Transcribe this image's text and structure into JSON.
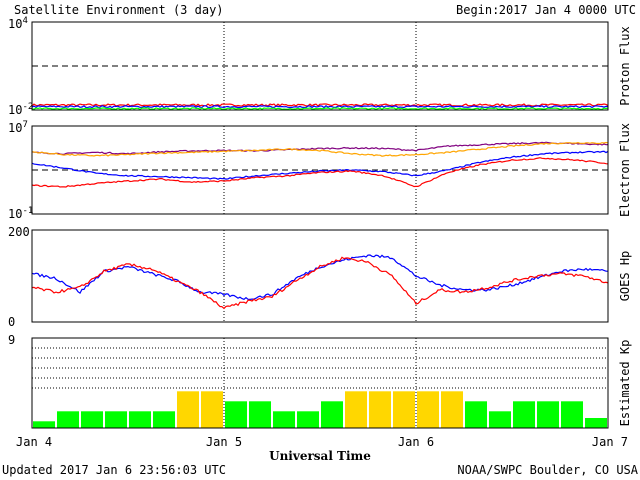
{
  "header": {
    "title": "Satellite Environment (3 day)",
    "begin_label": "Begin:",
    "begin_value": "2017 Jan 4 0000 UTC"
  },
  "footer": {
    "updated": "Updated 2017 Jan  6 23:56:03 UTC",
    "credit": "NOAA/SWPC Boulder, CO USA"
  },
  "chart_data": [
    {
      "type": "line",
      "ylabel": "Proton Flux",
      "y_scale": "log",
      "ylim": [
        0.01,
        10000
      ],
      "ytick_labels": [
        {
          "base": "10",
          "exp": "4",
          "value": 10000
        },
        {
          "base": "10",
          "exp": "-2",
          "value": 0.01
        }
      ],
      "threshold": 10,
      "series": [
        {
          "color": "#ff0000",
          "x": [
            0,
            72
          ],
          "y": [
            0.022,
            0.022
          ],
          "noise": 0.07
        },
        {
          "color": "#0000ff",
          "x": [
            0,
            72
          ],
          "y": [
            0.017,
            0.017
          ],
          "noise": 0.06
        },
        {
          "color": "#00ff00",
          "x": [
            0,
            72
          ],
          "y": [
            0.0125,
            0.0125
          ],
          "noise": 0.05
        }
      ]
    },
    {
      "type": "line",
      "ylabel": "Electron Flux",
      "y_scale": "log",
      "ylim": [
        0.1,
        10000000
      ],
      "ytick_labels": [
        {
          "base": "10",
          "exp": "7",
          "value": 10000000
        },
        {
          "base": "10",
          "exp": "-1",
          "value": 0.1
        }
      ],
      "threshold": 1000,
      "series": [
        {
          "color": "#800080",
          "x": [
            0,
            4,
            8,
            12,
            16,
            20,
            24,
            28,
            32,
            36,
            40,
            44,
            48,
            52,
            56,
            60,
            64,
            68,
            72
          ],
          "y": [
            40000,
            30000,
            40000,
            30000,
            45000,
            55000,
            60000,
            55000,
            70000,
            90000,
            100000,
            90000,
            60000,
            150000,
            200000,
            250000,
            300000,
            250000,
            200000
          ]
        },
        {
          "color": "#ffa500",
          "x": [
            0,
            4,
            8,
            12,
            16,
            20,
            24,
            28,
            32,
            36,
            40,
            44,
            48,
            52,
            56,
            60,
            64,
            68,
            72
          ],
          "y": [
            45000,
            25000,
            20000,
            25000,
            35000,
            40000,
            50000,
            60000,
            80000,
            60000,
            30000,
            20000,
            25000,
            40000,
            80000,
            150000,
            250000,
            300000,
            280000
          ]
        },
        {
          "color": "#0000ff",
          "x": [
            0,
            4,
            8,
            12,
            16,
            20,
            24,
            28,
            32,
            36,
            40,
            44,
            48,
            52,
            56,
            60,
            64,
            68,
            72
          ],
          "y": [
            4000,
            1500,
            500,
            300,
            250,
            200,
            150,
            300,
            500,
            800,
            1000,
            700,
            300,
            1000,
            5000,
            15000,
            30000,
            40000,
            45000
          ]
        },
        {
          "color": "#ff0000",
          "x": [
            0,
            4,
            8,
            12,
            16,
            20,
            24,
            28,
            32,
            36,
            40,
            44,
            48,
            52,
            56,
            60,
            64,
            68,
            72
          ],
          "y": [
            40,
            30,
            60,
            100,
            150,
            80,
            100,
            200,
            300,
            600,
            800,
            300,
            30,
            600,
            3000,
            8000,
            12000,
            8000,
            4000
          ]
        }
      ]
    },
    {
      "type": "line",
      "ylabel": "GOES Hp",
      "y_scale": "linear",
      "ylim": [
        0,
        200
      ],
      "ytick_labels": [
        {
          "base": "200",
          "exp": "",
          "value": 200
        },
        {
          "base": "0",
          "exp": "",
          "value": 0
        }
      ],
      "series": [
        {
          "color": "#0000ff",
          "x": [
            0,
            3,
            6,
            9,
            12,
            15,
            18,
            21,
            24,
            27,
            30,
            33,
            36,
            39,
            42,
            45,
            48,
            51,
            54,
            57,
            60,
            63,
            66,
            69,
            72
          ],
          "y": [
            105,
            95,
            65,
            110,
            120,
            105,
            90,
            65,
            60,
            50,
            60,
            95,
            120,
            135,
            145,
            140,
            100,
            80,
            70,
            70,
            80,
            95,
            110,
            115,
            110
          ]
        },
        {
          "color": "#ff0000",
          "x": [
            0,
            3,
            6,
            9,
            12,
            15,
            18,
            21,
            24,
            27,
            30,
            33,
            36,
            39,
            42,
            45,
            48,
            51,
            54,
            57,
            60,
            63,
            66,
            69,
            72
          ],
          "y": [
            75,
            65,
            75,
            110,
            125,
            115,
            90,
            65,
            30,
            45,
            55,
            90,
            120,
            140,
            130,
            100,
            40,
            70,
            65,
            75,
            90,
            100,
            105,
            100,
            85
          ]
        }
      ]
    },
    {
      "type": "bar",
      "ylabel": "Estimated Kp",
      "y_scale": "linear",
      "ylim": [
        0,
        9
      ],
      "ytick_labels": [
        {
          "base": "9",
          "exp": "",
          "value": 9
        }
      ],
      "guides": [
        4,
        5,
        6,
        7,
        8,
        9
      ],
      "colors": {
        "quiet": "#00ff00",
        "active": "#ffd700"
      },
      "active_threshold": 4,
      "x": [
        0,
        3,
        6,
        9,
        12,
        15,
        18,
        21,
        24,
        27,
        30,
        33,
        36,
        39,
        42,
        45,
        48,
        51,
        54,
        57,
        60,
        63,
        66,
        69
      ],
      "values": [
        0.67,
        1.67,
        1.67,
        1.67,
        1.67,
        1.67,
        3.67,
        3.67,
        2.67,
        2.67,
        1.67,
        1.67,
        2.67,
        3.67,
        3.67,
        3.67,
        3.67,
        3.67,
        2.67,
        1.67,
        2.67,
        2.67,
        2.67,
        1
      ]
    }
  ],
  "x_axis": {
    "label": "Universal Time",
    "range": [
      0,
      72
    ],
    "tick_labels": [
      {
        "label": "Jan 4",
        "x": 0
      },
      {
        "label": "Jan 5",
        "x": 24
      },
      {
        "label": "Jan 6",
        "x": 48
      },
      {
        "label": "Jan 7",
        "x": 72
      }
    ]
  }
}
